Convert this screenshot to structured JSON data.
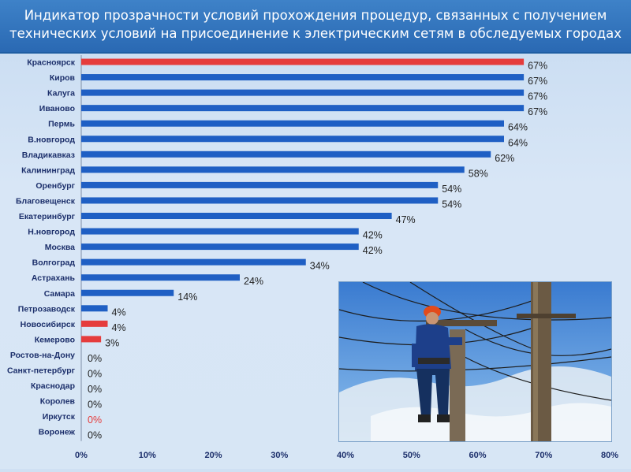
{
  "title": "Индикатор прозрачности условий прохождения процедур, связанных с получением\nтехнических условий на присоединение к электрическим сетям в обследуемых городах",
  "colors": {
    "bar_blue": "#1f5fc4",
    "bar_red": "#e53c3c",
    "title_bg": "#2f73bd"
  },
  "photo": {
    "icon": "lineman-on-pole-photo"
  },
  "chart_data": {
    "type": "bar",
    "orientation": "horizontal",
    "categories": [
      "Красноярск",
      "Киров",
      "Калуга",
      "Иваново",
      "Пермь",
      "В.новгород",
      "Владикавказ",
      "Калининград",
      "Оренбург",
      "Благовещенск",
      "Екатеринбург",
      "Н.новгород",
      "Москва",
      "Волгоград",
      "Астрахань",
      "Самара",
      "Петрозаводск",
      "Новосибирск",
      "Кемерово",
      "Ростов-на-Дону",
      "Санкт-петербург",
      "Краснодар",
      "Королев",
      "Иркутск",
      "Воронеж"
    ],
    "values": [
      67,
      67,
      67,
      67,
      64,
      64,
      62,
      58,
      54,
      54,
      47,
      42,
      42,
      34,
      24,
      14,
      4,
      4,
      3,
      0,
      0,
      0,
      0,
      0,
      0
    ],
    "labels": [
      "67%",
      "67%",
      "67%",
      "67%",
      "64%",
      "64%",
      "62%",
      "58%",
      "54%",
      "54%",
      "47%",
      "42%",
      "42%",
      "34%",
      "24%",
      "14%",
      "4%",
      "4%",
      "3%",
      "0%",
      "0%",
      "0%",
      "0%",
      "0%",
      "0%"
    ],
    "highlight": [
      true,
      false,
      false,
      false,
      false,
      false,
      false,
      false,
      false,
      false,
      false,
      false,
      false,
      false,
      false,
      false,
      false,
      true,
      true,
      false,
      false,
      false,
      false,
      true,
      false
    ],
    "xlim": [
      0,
      80
    ],
    "xticks": [
      "0%",
      "10%",
      "20%",
      "30%",
      "40%",
      "50%",
      "60%",
      "70%",
      "80%"
    ],
    "grid": false
  }
}
